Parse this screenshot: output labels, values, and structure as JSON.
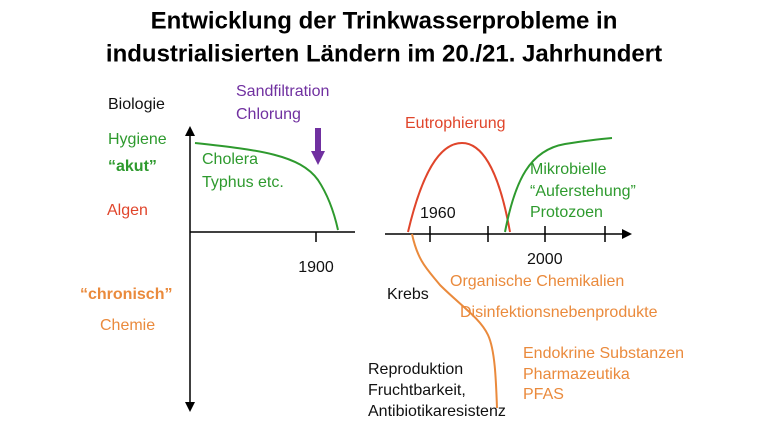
{
  "title": {
    "line1": "Entwicklung der Trinkwasserprobleme in",
    "line2": "industrialisierten Ländern im 20./21. Jahrhundert"
  },
  "left_labels": {
    "biologie": "Biologie",
    "hygiene": "Hygiene",
    "akut": "“akut”",
    "algen": "Algen",
    "chronisch": "“chronisch”",
    "chemie": "Chemie"
  },
  "left_panel": {
    "treatment": [
      "Sandfiltration",
      "Chlorung"
    ],
    "diseases": [
      "Cholera",
      "Typhus etc."
    ],
    "year": "1900"
  },
  "right_panel": {
    "year_1960": "1960",
    "year_2000": "2000",
    "eutrophication": "Eutrophierung",
    "microbial": [
      "Mikrobielle",
      "“Auferstehung”",
      "Protozoen"
    ],
    "cancer": "Krebs",
    "chemicals": [
      "Organische Chemikalien",
      "Disinfektionsnebenprodukte",
      "Endokrine Substanzen",
      "Pharmazeutika",
      "PFAS"
    ],
    "effects": [
      "Reproduktion",
      "Fruchtbarkeit,",
      "Antibiotikaresistenz"
    ]
  }
}
